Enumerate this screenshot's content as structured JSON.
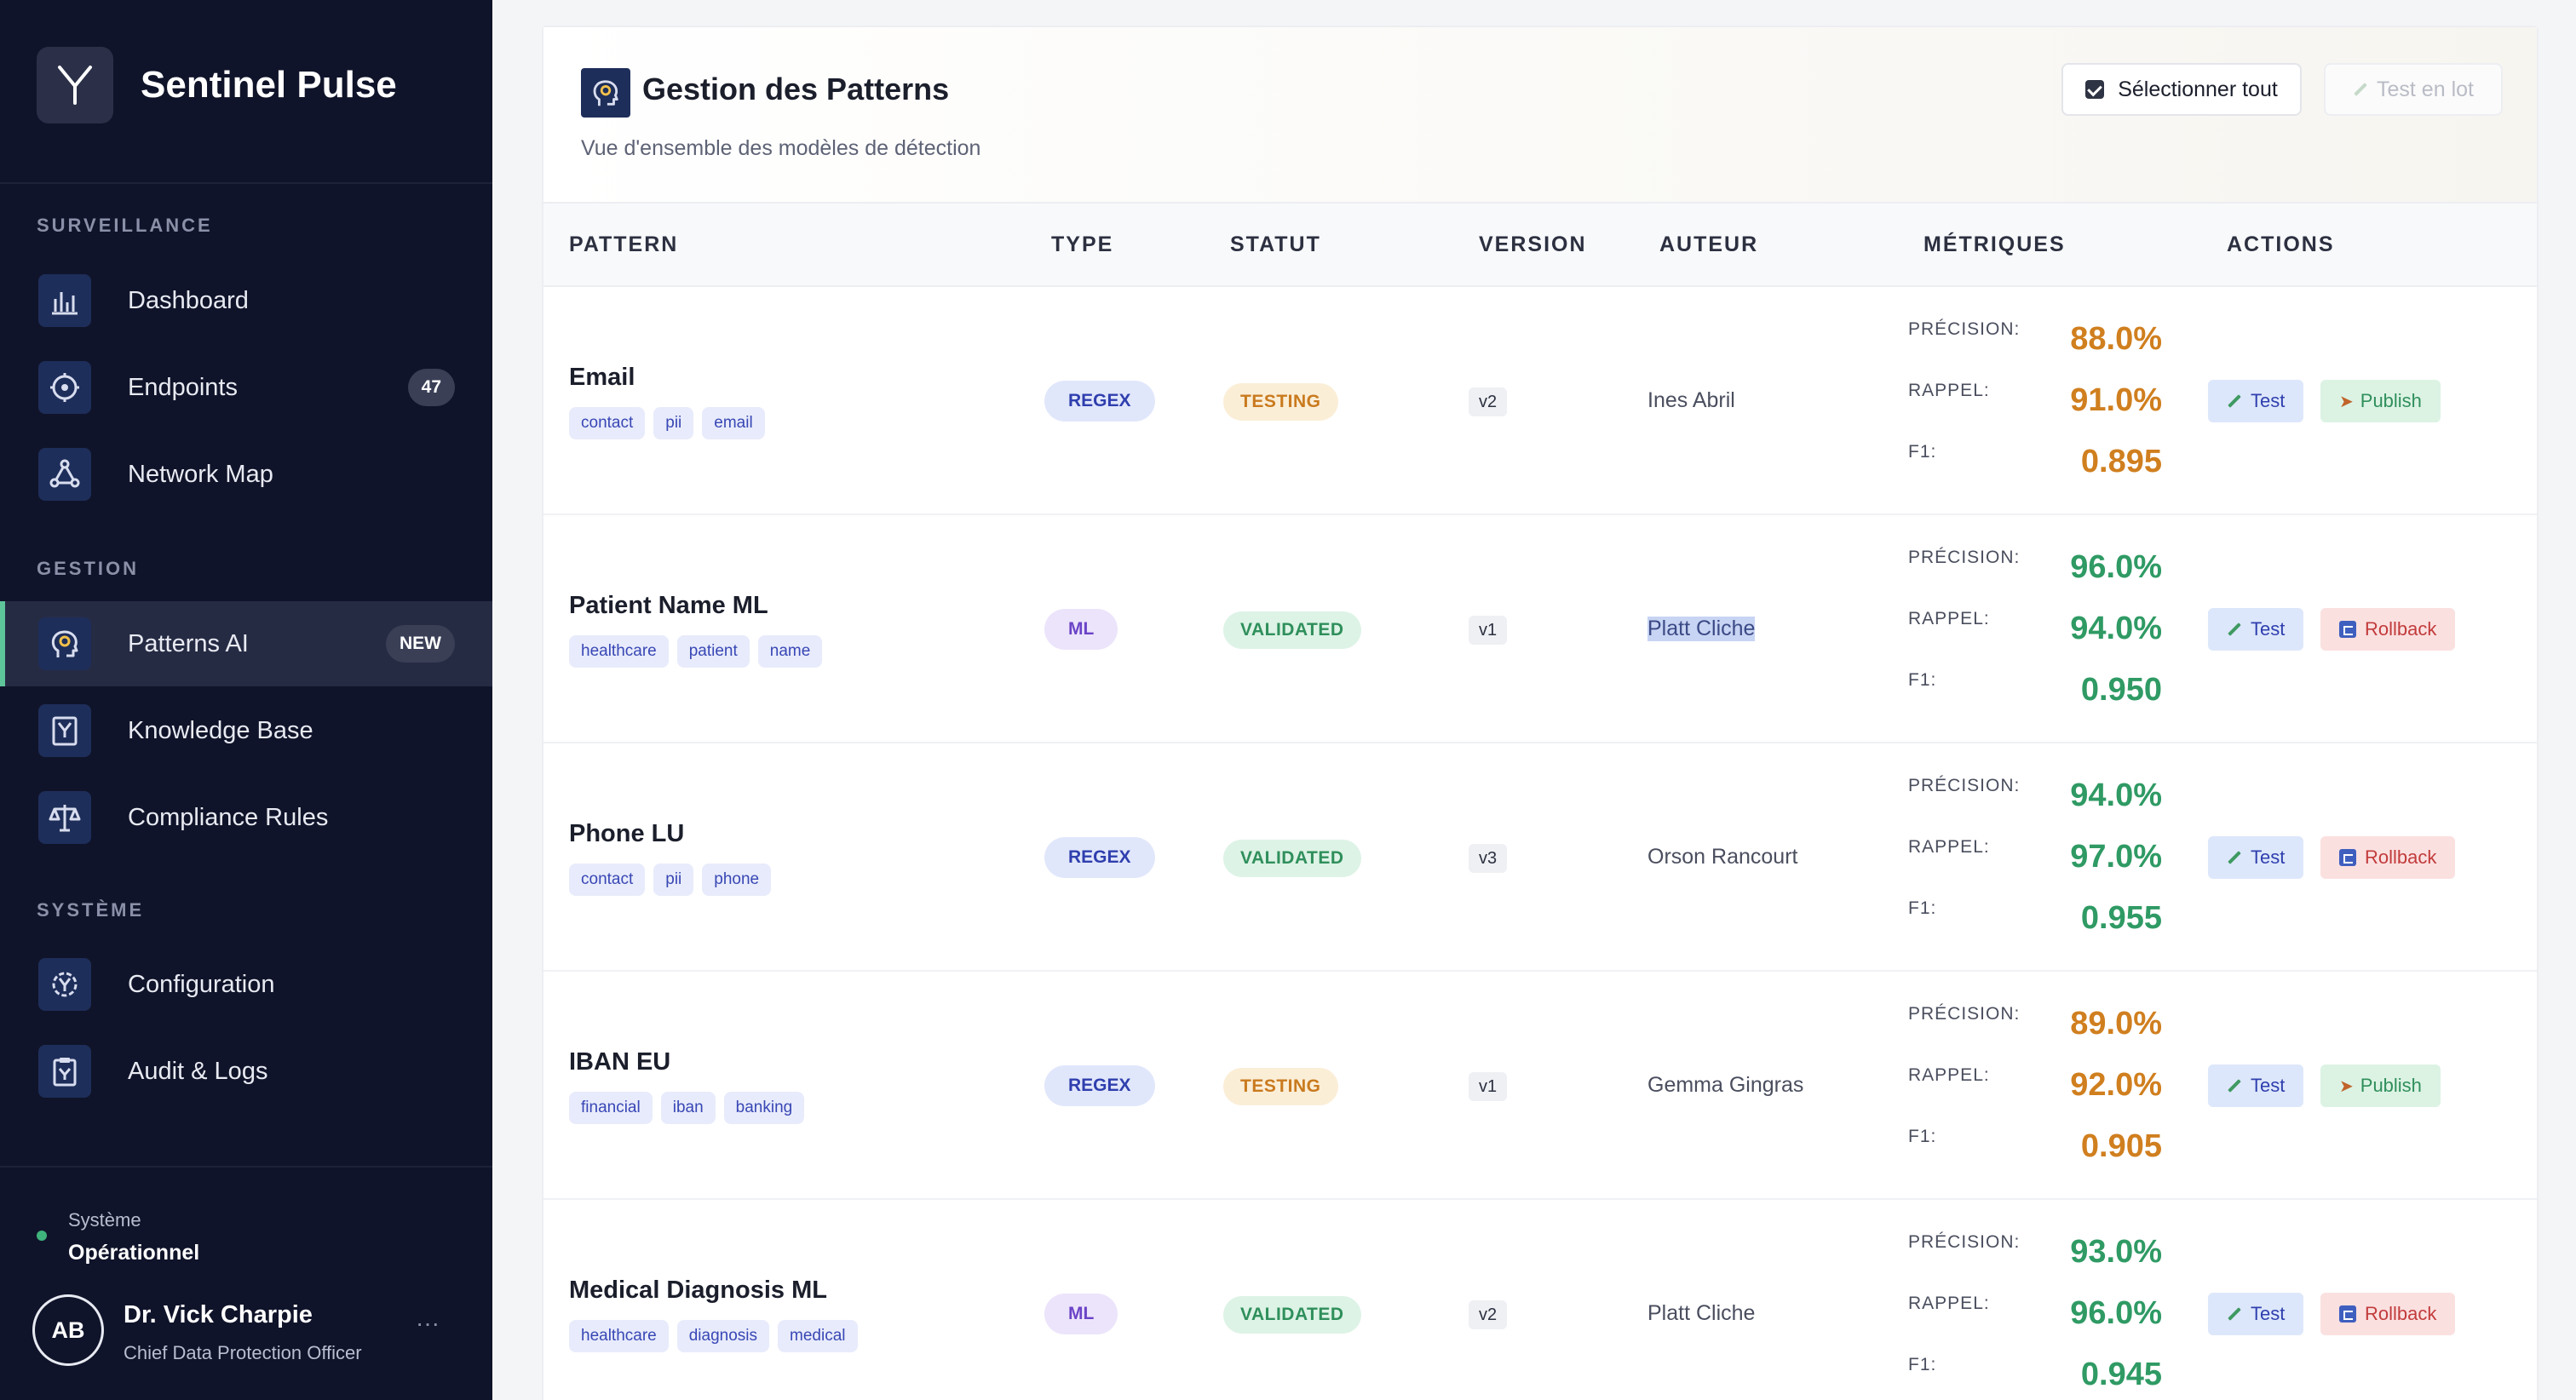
{
  "app": {
    "name": "Sentinel Pulse"
  },
  "sidebar": {
    "sections": [
      {
        "title": "SURVEILLANCE"
      },
      {
        "title": "GESTION"
      },
      {
        "title": "SYSTÈME"
      }
    ],
    "items": [
      {
        "label": "Dashboard",
        "icon": "chart-bars-icon"
      },
      {
        "label": "Endpoints",
        "icon": "brain-circuit-icon",
        "badge": "47"
      },
      {
        "label": "Network Map",
        "icon": "network-icon"
      },
      {
        "label": "Patterns AI",
        "icon": "head-idea-icon",
        "badge": "NEW",
        "active": true
      },
      {
        "label": "Knowledge Base",
        "icon": "book-icon"
      },
      {
        "label": "Compliance Rules",
        "icon": "scales-icon"
      },
      {
        "label": "Configuration",
        "icon": "gear-icon"
      },
      {
        "label": "Audit & Logs",
        "icon": "clipboard-icon"
      }
    ],
    "status": {
      "label": "Système",
      "value": "Opérationnel",
      "color": "#3fb37c"
    },
    "user": {
      "initials": "AB",
      "name": "Dr. Vick Charpie",
      "role": "Chief Data Protection Officer",
      "more": "···"
    }
  },
  "main": {
    "title": "Gestion des Patterns",
    "subtitle": "Vue d'ensemble des modèles de détection",
    "select_all_label": "Sélectionner tout",
    "batch_test_label": "Test en lot",
    "columns": [
      "PATTERN",
      "TYPE",
      "STATUT",
      "VERSION",
      "AUTEUR",
      "MÉTRIQUES",
      "ACTIONS"
    ],
    "metric_labels": {
      "precision": "PRÉCISION:",
      "recall": "RAPPEL:",
      "f1": "F1:"
    },
    "action_labels": {
      "test": "Test",
      "publish": "Publish",
      "rollback": "Rollback"
    },
    "rows": [
      {
        "name": "Email",
        "tags": [
          "contact",
          "pii",
          "email"
        ],
        "type": "REGEX",
        "status": "TESTING",
        "version": "v2",
        "author": "Ines Abril",
        "precision": "88.0%",
        "recall": "91.0%",
        "f1": "0.895",
        "secondary_action": "Publish"
      },
      {
        "name": "Patient Name ML",
        "tags": [
          "healthcare",
          "patient",
          "name"
        ],
        "type": "ML",
        "status": "VALIDATED",
        "version": "v1",
        "author": "Platt Cliche",
        "precision": "96.0%",
        "recall": "94.0%",
        "f1": "0.950",
        "secondary_action": "Rollback"
      },
      {
        "name": "Phone LU",
        "tags": [
          "contact",
          "pii",
          "phone"
        ],
        "type": "REGEX",
        "status": "VALIDATED",
        "version": "v3",
        "author": "Orson Rancourt",
        "precision": "94.0%",
        "recall": "97.0%",
        "f1": "0.955",
        "secondary_action": "Rollback"
      },
      {
        "name": "IBAN EU",
        "tags": [
          "financial",
          "iban",
          "banking"
        ],
        "type": "REGEX",
        "status": "TESTING",
        "version": "v1",
        "author": "Gemma Gingras",
        "precision": "89.0%",
        "recall": "92.0%",
        "f1": "0.905",
        "secondary_action": "Publish"
      },
      {
        "name": "Medical Diagnosis ML",
        "tags": [
          "healthcare",
          "diagnosis",
          "medical"
        ],
        "type": "ML",
        "status": "VALIDATED",
        "version": "v2",
        "author": "Platt Cliche",
        "precision": "93.0%",
        "recall": "96.0%",
        "f1": "0.945",
        "secondary_action": "Rollback"
      }
    ]
  }
}
